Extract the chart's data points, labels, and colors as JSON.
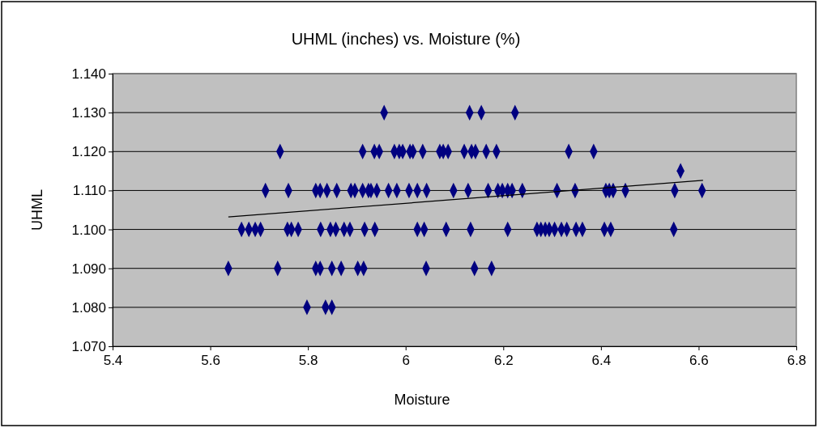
{
  "chart_data": {
    "type": "scatter",
    "title": "UHML (inches) vs. Moisture (%)",
    "xlabel": "Moisture",
    "ylabel": "UHML",
    "xlim": [
      5.4,
      6.8
    ],
    "xticks": [
      5.4,
      5.6,
      5.8,
      6,
      6.2,
      6.4,
      6.6,
      6.8
    ],
    "ylim": [
      1.07,
      1.14
    ],
    "yticks": [
      {
        "value": 1.07,
        "label": "1.070"
      },
      {
        "value": 1.08,
        "label": "1.080"
      },
      {
        "value": 1.09,
        "label": "1.090"
      },
      {
        "value": 1.1,
        "label": "1.100"
      },
      {
        "value": 1.11,
        "label": "1.110"
      },
      {
        "value": 1.12,
        "label": "1.120"
      },
      {
        "value": 1.13,
        "label": "1.130"
      },
      {
        "value": 1.14,
        "label": "1.140"
      }
    ],
    "grid": "y",
    "marker": "diamond",
    "series": [
      {
        "color": "#000080",
        "x": [
          5.956,
          6.131,
          6.155,
          6.224,
          5.743,
          5.912,
          5.936,
          5.946,
          5.977,
          5.987,
          5.994,
          6.009,
          6.015,
          6.035,
          6.07,
          6.077,
          6.087,
          6.12,
          6.135,
          6.143,
          6.165,
          6.186,
          6.334,
          6.385,
          5.713,
          5.76,
          5.816,
          5.825,
          5.839,
          5.859,
          5.888,
          5.896,
          5.912,
          5.924,
          5.929,
          5.941,
          5.965,
          5.982,
          6.007,
          6.024,
          6.043,
          6.098,
          6.128,
          6.169,
          6.189,
          6.198,
          6.209,
          6.218,
          6.239,
          6.31,
          6.347,
          6.41,
          6.417,
          6.425,
          6.45,
          6.551,
          6.607,
          6.563,
          5.664,
          5.679,
          5.692,
          5.703,
          5.758,
          5.766,
          5.78,
          5.826,
          5.846,
          5.857,
          5.874,
          5.886,
          5.916,
          5.937,
          6.024,
          6.038,
          6.083,
          6.133,
          6.209,
          6.269,
          6.277,
          6.286,
          6.294,
          6.305,
          6.319,
          6.33,
          6.349,
          6.362,
          6.407,
          6.42,
          6.549,
          5.637,
          5.738,
          5.816,
          5.825,
          5.849,
          5.868,
          5.902,
          5.914,
          6.042,
          6.141,
          6.176,
          5.798,
          5.836,
          5.849
        ],
        "values": [
          1.13,
          1.13,
          1.13,
          1.13,
          1.12,
          1.12,
          1.12,
          1.12,
          1.12,
          1.12,
          1.12,
          1.12,
          1.12,
          1.12,
          1.12,
          1.12,
          1.12,
          1.12,
          1.12,
          1.12,
          1.12,
          1.12,
          1.12,
          1.12,
          1.11,
          1.11,
          1.11,
          1.11,
          1.11,
          1.11,
          1.11,
          1.11,
          1.11,
          1.11,
          1.11,
          1.11,
          1.11,
          1.11,
          1.11,
          1.11,
          1.11,
          1.11,
          1.11,
          1.11,
          1.11,
          1.11,
          1.11,
          1.11,
          1.11,
          1.11,
          1.11,
          1.11,
          1.11,
          1.11,
          1.11,
          1.11,
          1.11,
          1.115,
          1.1,
          1.1,
          1.1,
          1.1,
          1.1,
          1.1,
          1.1,
          1.1,
          1.1,
          1.1,
          1.1,
          1.1,
          1.1,
          1.1,
          1.1,
          1.1,
          1.1,
          1.1,
          1.1,
          1.1,
          1.1,
          1.1,
          1.1,
          1.1,
          1.1,
          1.1,
          1.1,
          1.1,
          1.1,
          1.1,
          1.1,
          1.09,
          1.09,
          1.09,
          1.09,
          1.09,
          1.09,
          1.09,
          1.09,
          1.09,
          1.09,
          1.09,
          1.08,
          1.08,
          1.08
        ]
      },
      {
        "type": "line",
        "color": "#000000",
        "marker": "none",
        "x": [
          5.637,
          6.609
        ],
        "values": [
          1.1032,
          1.1126
        ]
      }
    ]
  }
}
